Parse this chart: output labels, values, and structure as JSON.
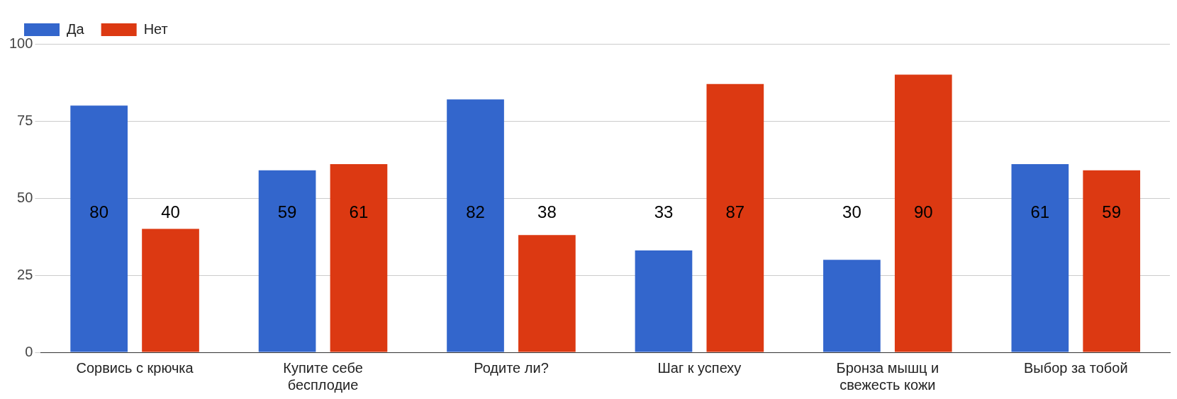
{
  "chart_data": {
    "type": "bar",
    "categories": [
      "Сорвись с крючка",
      "Купите себе бесплодие",
      "Родите ли?",
      "Шаг к успеху",
      "Бронза мышц и свежесть кожи",
      "Выбор за тобой"
    ],
    "series": [
      {
        "name": "Да",
        "color": "#3366cc",
        "values": [
          80,
          59,
          82,
          33,
          30,
          61
        ]
      },
      {
        "name": "Нет",
        "color": "#dc3912",
        "values": [
          40,
          61,
          38,
          87,
          90,
          59
        ]
      }
    ],
    "ylim": [
      0,
      100
    ],
    "yticks": [
      0,
      25,
      50,
      75,
      100
    ],
    "grid": "y",
    "legend": "top left",
    "data_labels": true
  }
}
